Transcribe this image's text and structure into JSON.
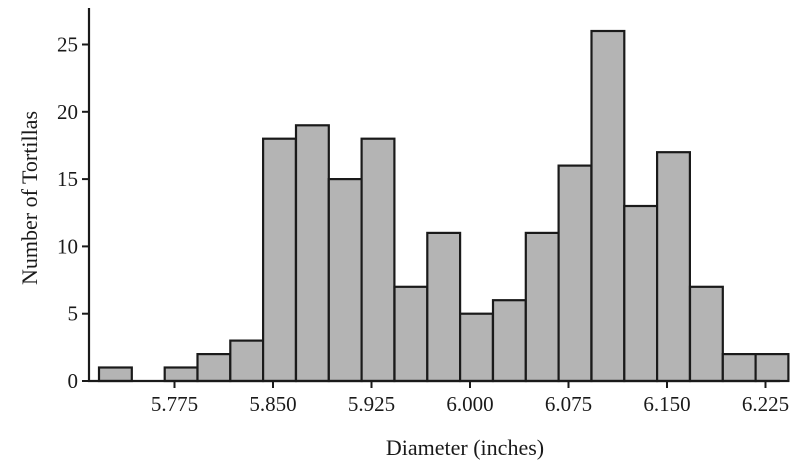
{
  "chart_data": {
    "type": "bar",
    "xlabel": "Diameter (inches)",
    "ylabel": "Number of Tortillas",
    "ylim": [
      0,
      26
    ],
    "xlim": [
      5.72,
      6.24
    ],
    "bin_width": 0.025,
    "bins": [
      {
        "center": 5.73,
        "count": 1
      },
      {
        "center": 5.78,
        "count": 1
      },
      {
        "center": 5.805,
        "count": 2
      },
      {
        "center": 5.83,
        "count": 3
      },
      {
        "center": 5.855,
        "count": 18
      },
      {
        "center": 5.88,
        "count": 19
      },
      {
        "center": 5.905,
        "count": 15
      },
      {
        "center": 5.93,
        "count": 18
      },
      {
        "center": 5.955,
        "count": 7
      },
      {
        "center": 5.98,
        "count": 11
      },
      {
        "center": 6.005,
        "count": 5
      },
      {
        "center": 6.03,
        "count": 6
      },
      {
        "center": 6.055,
        "count": 11
      },
      {
        "center": 6.08,
        "count": 16
      },
      {
        "center": 6.105,
        "count": 26
      },
      {
        "center": 6.13,
        "count": 13
      },
      {
        "center": 6.155,
        "count": 17
      },
      {
        "center": 6.18,
        "count": 7
      },
      {
        "center": 6.205,
        "count": 2
      },
      {
        "center": 6.23,
        "count": 2
      }
    ],
    "x_ticks": [
      {
        "value": 5.775,
        "label": "5.775"
      },
      {
        "value": 5.85,
        "label": "5.850"
      },
      {
        "value": 5.925,
        "label": "5.925"
      },
      {
        "value": 6.0,
        "label": "6.000"
      },
      {
        "value": 6.075,
        "label": "6.075"
      },
      {
        "value": 6.15,
        "label": "6.150"
      },
      {
        "value": 6.225,
        "label": "6.225"
      }
    ],
    "y_ticks": [
      {
        "value": 0,
        "label": "0"
      },
      {
        "value": 5,
        "label": "5"
      },
      {
        "value": 10,
        "label": "10"
      },
      {
        "value": 15,
        "label": "15"
      },
      {
        "value": 20,
        "label": "20"
      },
      {
        "value": 25,
        "label": "25"
      }
    ],
    "grid": false,
    "legend": "none",
    "colors": {
      "bar_fill": "#b4b4b4",
      "bar_stroke": "#1a1a1a"
    }
  }
}
